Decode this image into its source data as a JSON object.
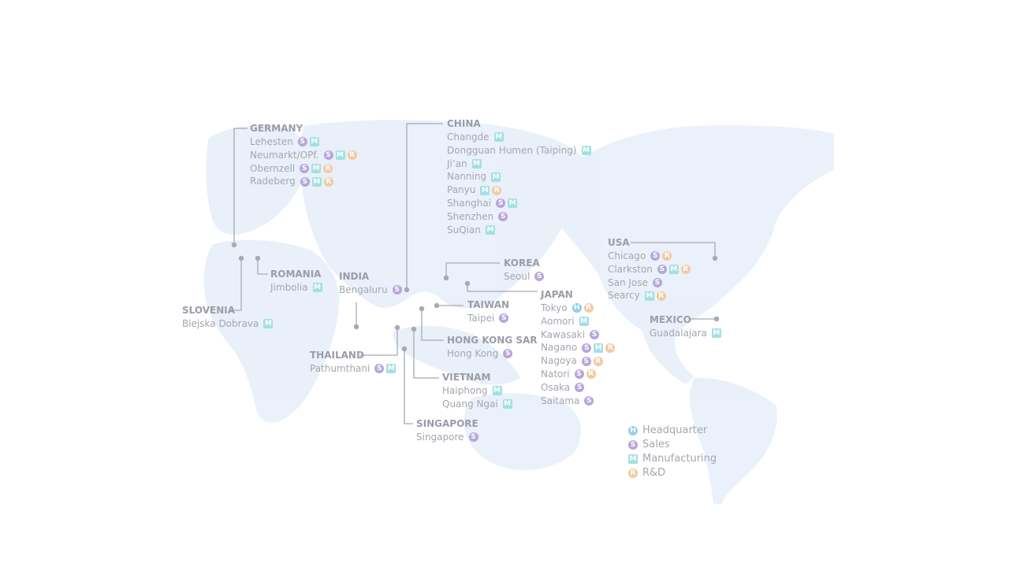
{
  "colors": {
    "sales": "#b7a6d9",
    "manufacturing": "#a3dfe3",
    "rnd": "#f3c9a2",
    "headquarter": "#93cfe9",
    "land": "#e6eef9",
    "connector": "#a7a9b3"
  },
  "badge_letters": {
    "H": "H",
    "S": "S",
    "M": "M",
    "R": "R"
  },
  "regions": [
    {
      "id": "germany",
      "country": "GERMANY",
      "cities": [
        {
          "name": "Lehesten",
          "badges": [
            "S",
            "M"
          ]
        },
        {
          "name": "Neumarkt/OPf.",
          "badges": [
            "S",
            "M",
            "R"
          ]
        },
        {
          "name": "Obernzell",
          "badges": [
            "S",
            "M",
            "R"
          ]
        },
        {
          "name": "Radeberg",
          "badges": [
            "S",
            "M",
            "R"
          ]
        }
      ]
    },
    {
      "id": "romania",
      "country": "ROMANIA",
      "cities": [
        {
          "name": "Jimbolia",
          "badges": [
            "M"
          ]
        }
      ]
    },
    {
      "id": "slovenia",
      "country": "SLOVENIA",
      "cities": [
        {
          "name": "Blejska Dobrava",
          "badges": [
            "M"
          ]
        }
      ]
    },
    {
      "id": "india",
      "country": "INDIA",
      "cities": [
        {
          "name": "Bengaluru",
          "badges": [
            "S"
          ]
        }
      ]
    },
    {
      "id": "china",
      "country": "CHINA",
      "cities": [
        {
          "name": "Changde",
          "badges": [
            "M"
          ]
        },
        {
          "name": "Dongguan Humen (Taiping)",
          "badges": [
            "M"
          ]
        },
        {
          "name": "Ji’an",
          "badges": [
            "M"
          ]
        },
        {
          "name": "Nanning",
          "badges": [
            "M"
          ]
        },
        {
          "name": "Panyu",
          "badges": [
            "M",
            "R"
          ]
        },
        {
          "name": "Shanghai",
          "badges": [
            "S",
            "M"
          ]
        },
        {
          "name": "Shenzhen",
          "badges": [
            "S"
          ]
        },
        {
          "name": "SuQian",
          "badges": [
            "M"
          ]
        }
      ]
    },
    {
      "id": "korea",
      "country": "KOREA",
      "cities": [
        {
          "name": "Seoul",
          "badges": [
            "S"
          ]
        }
      ]
    },
    {
      "id": "taiwan",
      "country": "TAIWAN",
      "cities": [
        {
          "name": "Taipei",
          "badges": [
            "S"
          ]
        }
      ]
    },
    {
      "id": "hongkong",
      "country": "HONG KONG SAR",
      "cities": [
        {
          "name": "Hong Kong",
          "badges": [
            "S"
          ]
        }
      ]
    },
    {
      "id": "thailand",
      "country": "THAILAND",
      "cities": [
        {
          "name": "Pathumthani",
          "badges": [
            "S",
            "M"
          ]
        }
      ]
    },
    {
      "id": "vietnam",
      "country": "VIETNAM",
      "cities": [
        {
          "name": "Haiphong",
          "badges": [
            "M"
          ]
        },
        {
          "name": "Quang Ngai",
          "badges": [
            "M"
          ]
        }
      ]
    },
    {
      "id": "singapore",
      "country": "SINGAPORE",
      "cities": [
        {
          "name": "Singapore",
          "badges": [
            "S"
          ]
        }
      ]
    },
    {
      "id": "japan",
      "country": "JAPAN",
      "cities": [
        {
          "name": "Tokyo",
          "badges": [
            "H",
            "R"
          ]
        },
        {
          "name": "Aomori",
          "badges": [
            "M"
          ]
        },
        {
          "name": "Kawasaki",
          "badges": [
            "S"
          ]
        },
        {
          "name": "Nagano",
          "badges": [
            "S",
            "M",
            "R"
          ]
        },
        {
          "name": "Nagoya",
          "badges": [
            "S",
            "R"
          ]
        },
        {
          "name": "Natori",
          "badges": [
            "S",
            "R"
          ]
        },
        {
          "name": "Osaka",
          "badges": [
            "S"
          ]
        },
        {
          "name": "Saitama",
          "badges": [
            "S"
          ]
        }
      ]
    },
    {
      "id": "usa",
      "country": "USA",
      "cities": [
        {
          "name": "Chicago",
          "badges": [
            "S",
            "R"
          ]
        },
        {
          "name": "Clarkston",
          "badges": [
            "S",
            "M",
            "R"
          ]
        },
        {
          "name": "San Jose",
          "badges": [
            "S"
          ]
        },
        {
          "name": "Searcy",
          "badges": [
            "M",
            "R"
          ]
        }
      ]
    },
    {
      "id": "mexico",
      "country": "MEXICO",
      "cities": [
        {
          "name": "Guadalajara",
          "badges": [
            "M"
          ]
        }
      ]
    }
  ],
  "legend": [
    {
      "badge": "H",
      "label": "Headquarter"
    },
    {
      "badge": "S",
      "label": "Sales"
    },
    {
      "badge": "M",
      "label": "Manufacturing"
    },
    {
      "badge": "R",
      "label": "R&D"
    }
  ]
}
